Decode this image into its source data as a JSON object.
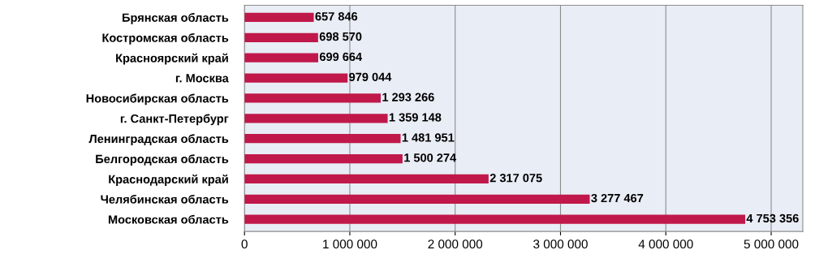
{
  "chart_data": {
    "type": "bar",
    "orientation": "horizontal",
    "categories": [
      "Брянская область",
      "Костромская область",
      "Красноярский край",
      "г. Москва",
      "Новосибирская область",
      "г. Санкт-Петербург",
      "Ленинградская область",
      "Белгородская область",
      "Краснодарский край",
      "Челябинская область",
      "Московская область"
    ],
    "values": [
      657846,
      698570,
      699664,
      979044,
      1293266,
      1359148,
      1481951,
      1500274,
      2317075,
      3277467,
      4753356
    ],
    "color": "#c0184a",
    "data_labels": true,
    "grid": "x",
    "legend": false,
    "xlim": [
      0,
      5300000
    ],
    "xticks": [
      0,
      {
        "value": 1000000,
        "label": "1 000 000"
      },
      {
        "value": 2000000,
        "label": "2 000 000"
      },
      {
        "value": 3000000,
        "label": "3 000 000"
      },
      {
        "value": 4000000,
        "label": "4 000 000"
      },
      {
        "value": 5000000,
        "label": "5 000 000"
      }
    ]
  }
}
